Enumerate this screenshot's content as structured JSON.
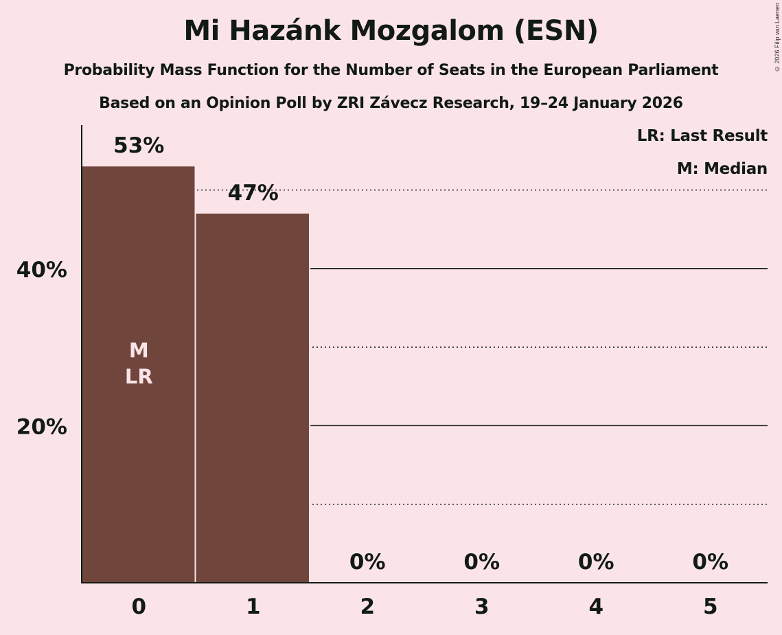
{
  "header": {
    "title": "Mi Hazánk Mozgalom (ESN)",
    "subtitle": "Probability Mass Function for the Number of Seats in the European Parliament",
    "source": "Based on an Opinion Poll by ZRI Závecz Research, 19–24 January 2026",
    "copyright": "© 2026 Filip van Laenen"
  },
  "legend": {
    "lr": "LR: Last Result",
    "m": "M: Median"
  },
  "colors": {
    "background": "#fbe4e7",
    "bar": "#70463c",
    "text": "#111a14",
    "bar_label": "#fbe4e7"
  },
  "chart_data": {
    "type": "bar",
    "title": "Mi Hazánk Mozgalom (ESN)",
    "subtitle": "Probability Mass Function for the Number of Seats in the European Parliament",
    "xlabel": "",
    "ylabel": "",
    "categories": [
      "0",
      "1",
      "2",
      "3",
      "4",
      "5"
    ],
    "values": [
      53,
      47,
      0,
      0,
      0,
      0
    ],
    "value_labels": [
      "53%",
      "47%",
      "0%",
      "0%",
      "0%",
      "0%"
    ],
    "ylim": [
      0,
      58
    ],
    "yticks": [
      20,
      40
    ],
    "ytick_labels": [
      "20%",
      "40%"
    ],
    "gridlines": {
      "solid": [
        20,
        40
      ],
      "dotted": [
        10,
        30,
        50
      ]
    },
    "annotations": [
      {
        "category": "0",
        "text": [
          "M",
          "LR"
        ]
      }
    ],
    "legend": [
      "LR: Last Result",
      "M: Median"
    ],
    "legend_position": "top-right"
  }
}
